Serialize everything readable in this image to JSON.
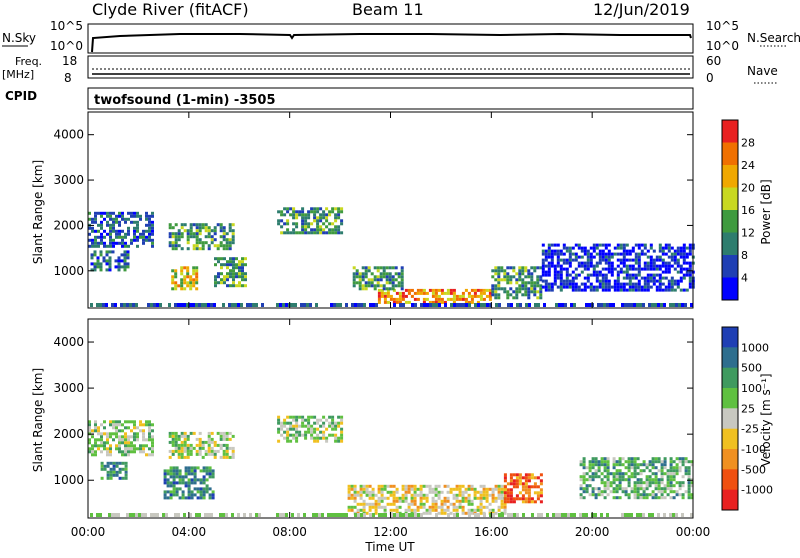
{
  "header": {
    "station": "Clyde River (fitACF)",
    "beam": "Beam 11",
    "date": "12/Jun/2019"
  },
  "sky_panel": {
    "left_label": "N.Sky",
    "right_label": "N.Search",
    "left_ticks": [
      "10^5",
      "10^0"
    ],
    "right_ticks": [
      "10^5",
      "10^0"
    ]
  },
  "freq_panel": {
    "left_label_1": "Freq.",
    "left_label_2": "[MHz]",
    "left_ticks": [
      "18",
      "8"
    ],
    "right_ticks": [
      "60",
      "0"
    ],
    "right_label": "Nave",
    "cpid_label": "CPID"
  },
  "program": {
    "label": "twofsound (1-min) -3505"
  },
  "chart_data": [
    {
      "type": "heatmap",
      "quantity": "Power",
      "ylabel": "Slant Range [km]",
      "xlabel": "",
      "ylim": [
        180,
        4500
      ],
      "xlim": [
        0,
        24
      ],
      "y_ticks": [
        "1000",
        "2000",
        "3000",
        "4000"
      ],
      "colorbar": {
        "label": "Power [dB]",
        "ticks": [
          "4",
          "8",
          "12",
          "16",
          "20",
          "24",
          "28"
        ],
        "colors": [
          "#0000ff",
          "#1f3fb4",
          "#2e7d6e",
          "#3f9a3f",
          "#c8d820",
          "#f0a800",
          "#f07000",
          "#e82020"
        ]
      },
      "bands": [
        {
          "t0": 0.0,
          "t1": 2.5,
          "r0": 1550,
          "r1": 2300,
          "level": 2
        },
        {
          "t0": 0.1,
          "t1": 1.6,
          "r0": 1050,
          "r1": 1450,
          "level": 2
        },
        {
          "t0": 3.3,
          "t1": 4.3,
          "r0": 600,
          "r1": 1100,
          "level": 5
        },
        {
          "t0": 5.0,
          "t1": 6.2,
          "r0": 700,
          "r1": 1300,
          "level": 3
        },
        {
          "t0": 3.2,
          "t1": 5.8,
          "r0": 1500,
          "r1": 2050,
          "level": 3
        },
        {
          "t0": 7.5,
          "t1": 10.0,
          "r0": 1850,
          "r1": 2400,
          "level": 3
        },
        {
          "t0": 11.5,
          "t1": 16.0,
          "r0": 300,
          "r1": 600,
          "level": 6
        },
        {
          "t0": 10.5,
          "t1": 12.5,
          "r0": 600,
          "r1": 1100,
          "level": 3
        },
        {
          "t0": 16.0,
          "t1": 18.0,
          "r0": 400,
          "r1": 1100,
          "level": 3
        },
        {
          "t0": 18.0,
          "t1": 24.0,
          "r0": 600,
          "r1": 1600,
          "level": 1
        }
      ]
    },
    {
      "type": "heatmap",
      "quantity": "Velocity",
      "ylabel": "Slant Range [km]",
      "xlabel": "Time UT",
      "ylim": [
        180,
        4500
      ],
      "xlim": [
        0,
        24
      ],
      "y_ticks": [
        "1000",
        "2000",
        "3000",
        "4000"
      ],
      "x_ticks": [
        "00:00",
        "04:00",
        "08:00",
        "12:00",
        "16:00",
        "20:00",
        "00:00"
      ],
      "colorbar": {
        "label": "Velocity [m s⁻¹]",
        "ticks": [
          "1000",
          "500",
          "100",
          "25",
          "-25",
          "-100",
          "-500",
          "-1000"
        ],
        "colors": [
          "#1f3fb4",
          "#2e6e8e",
          "#3f9a5f",
          "#5fc040",
          "#c8c8c0",
          "#f0c020",
          "#f09020",
          "#f05010",
          "#e82020"
        ]
      },
      "bands": [
        {
          "t0": 0.0,
          "t1": 2.5,
          "r0": 1550,
          "r1": 2300,
          "level": 4
        },
        {
          "t0": 3.2,
          "t1": 5.8,
          "r0": 1500,
          "r1": 2050,
          "level": 4
        },
        {
          "t0": 7.5,
          "t1": 10.0,
          "r0": 1850,
          "r1": 2400,
          "level": 4
        },
        {
          "t0": 3.0,
          "t1": 5.0,
          "r0": 600,
          "r1": 1300,
          "level": 2
        },
        {
          "t0": 0.5,
          "t1": 1.5,
          "r0": 1050,
          "r1": 1400,
          "level": 2
        },
        {
          "t0": 10.3,
          "t1": 16.5,
          "r0": 300,
          "r1": 900,
          "level": 5
        },
        {
          "t0": 16.5,
          "t1": 18.0,
          "r0": 500,
          "r1": 1150,
          "level": 7
        },
        {
          "t0": 19.5,
          "t1": 24.0,
          "r0": 600,
          "r1": 1500,
          "level": 3
        }
      ]
    }
  ]
}
